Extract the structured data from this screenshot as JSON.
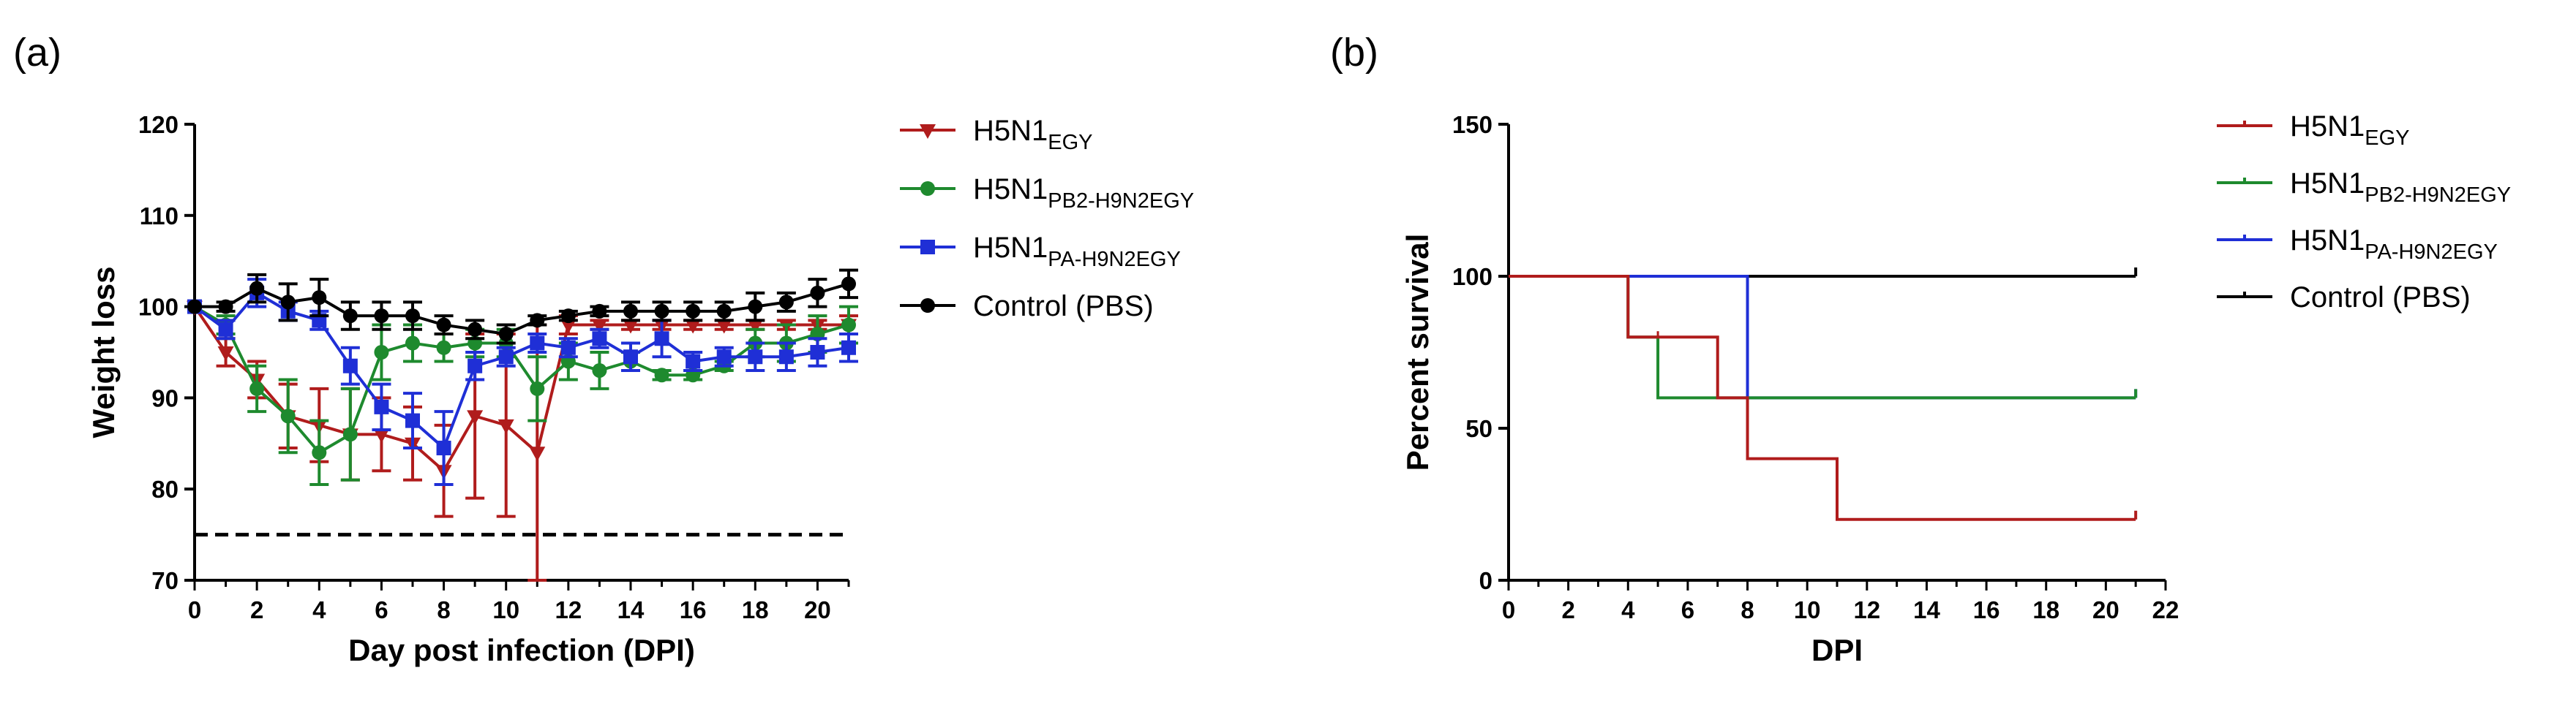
{
  "chart_data": [
    {
      "panel_label": "(a)",
      "type": "line",
      "xlabel": "Day post infection (DPI)",
      "ylabel": "Weight loss",
      "xlim": [
        0,
        21
      ],
      "ylim": [
        70,
        120
      ],
      "xticks": [
        "0",
        "2",
        "4",
        "6",
        "8",
        "10",
        "12",
        "14",
        "16",
        "18",
        "20"
      ],
      "yticks": [
        "70",
        "80",
        "90",
        "100",
        "110",
        "120"
      ],
      "grid": false,
      "legend_position": "right",
      "reference_line": {
        "y": 75,
        "style": "dashed"
      },
      "x": [
        0,
        1,
        2,
        3,
        4,
        5,
        6,
        7,
        8,
        9,
        10,
        11,
        12,
        13,
        14,
        15,
        16,
        17,
        18,
        19,
        20,
        21
      ],
      "series": [
        {
          "name_main": "H5N1",
          "name_sub": "EGY",
          "color": "#b01c1c",
          "marker": "triangle-down",
          "x": [
            0,
            1,
            2,
            3,
            4,
            5,
            6,
            7,
            8,
            9,
            10,
            11,
            12,
            13,
            14,
            15,
            16,
            17,
            18,
            19,
            20,
            21
          ],
          "values": [
            100,
            95,
            92,
            88,
            87,
            86,
            86,
            85,
            82,
            88,
            87,
            84,
            98,
            98,
            98,
            98,
            98,
            98,
            98,
            98,
            98,
            98
          ],
          "errors": [
            0,
            1.5,
            2,
            3.5,
            4,
            5,
            4,
            4,
            5,
            9,
            10,
            14,
            1,
            0.5,
            0.5,
            0.5,
            0.5,
            0.5,
            0.5,
            0.5,
            0.5,
            1
          ]
        },
        {
          "name_main": "H5N1",
          "name_sub": "PB2-H9N2EGY",
          "color": "#1e8a2e",
          "marker": "circle",
          "x": [
            0,
            1,
            2,
            3,
            4,
            5,
            6,
            7,
            8,
            9,
            10,
            11,
            12,
            13,
            14,
            15,
            16,
            17,
            18,
            19,
            20,
            21
          ],
          "values": [
            100,
            98,
            91,
            88,
            84,
            86,
            95,
            96,
            95.5,
            96,
            96,
            91,
            94,
            93,
            94,
            92.5,
            92.5,
            93.5,
            96,
            96,
            97,
            98
          ],
          "errors": [
            0,
            1,
            2.5,
            4,
            3.5,
            5,
            3,
            2,
            1.5,
            1.5,
            1.5,
            3.5,
            2,
            2,
            1,
            0.5,
            0.5,
            0.5,
            1.5,
            2,
            2,
            2
          ]
        },
        {
          "name_main": "H5N1",
          "name_sub": "PA-H9N2EGY",
          "color": "#1f2fd6",
          "marker": "square",
          "x": [
            0,
            1,
            2,
            3,
            4,
            5,
            6,
            7,
            8,
            9,
            10,
            11,
            12,
            13,
            14,
            15,
            16,
            17,
            18,
            19,
            20,
            21
          ],
          "values": [
            100,
            97.5,
            101.5,
            99.5,
            98.5,
            93.5,
            89,
            87.5,
            84.5,
            93.5,
            94.5,
            96,
            95.5,
            96.5,
            94.5,
            96.5,
            94,
            94.5,
            94.5,
            94.5,
            95,
            95.5
          ],
          "errors": [
            0,
            1,
            1.5,
            1,
            1,
            2,
            2.5,
            3,
            4,
            1.5,
            1,
            1,
            1,
            1,
            1.5,
            2,
            1,
            1,
            1.5,
            1.5,
            1.5,
            1.5
          ]
        },
        {
          "name_main": "Control (PBS)",
          "name_sub": "",
          "color": "#000000",
          "marker": "circle",
          "x": [
            0,
            1,
            2,
            3,
            4,
            5,
            6,
            7,
            8,
            9,
            10,
            11,
            12,
            13,
            14,
            15,
            16,
            17,
            18,
            19,
            20,
            21
          ],
          "values": [
            100,
            100,
            102,
            100.5,
            101,
            99,
            99,
            99,
            98,
            97.5,
            97,
            98.5,
            99,
            99.5,
            99.5,
            99.5,
            99.5,
            99.5,
            100,
            100.5,
            101.5,
            102.5
          ],
          "errors": [
            0,
            0.5,
            1.5,
            2,
            2,
            1.5,
            1.5,
            1.5,
            1,
            1,
            1,
            0.5,
            0.5,
            0.5,
            1,
            1,
            1,
            1,
            1.5,
            1,
            1.5,
            1.5
          ]
        }
      ]
    },
    {
      "panel_label": "(b)",
      "type": "line",
      "step": true,
      "xlabel": "DPI",
      "ylabel": "Percent survival",
      "xlim": [
        0,
        22
      ],
      "ylim": [
        0,
        150
      ],
      "xticks": [
        "0",
        "2",
        "4",
        "6",
        "8",
        "10",
        "12",
        "14",
        "16",
        "18",
        "20",
        "22"
      ],
      "yticks": [
        "0",
        "50",
        "100",
        "150"
      ],
      "grid": false,
      "legend_position": "top-right",
      "series": [
        {
          "name_main": "H5N1",
          "name_sub": "EGY",
          "color": "#b01c1c",
          "x": [
            0,
            4,
            5,
            7,
            8,
            11,
            21
          ],
          "values": [
            100,
            80,
            80,
            60,
            40,
            20,
            20
          ]
        },
        {
          "name_main": "H5N1",
          "name_sub": "PB2-H9N2EGY",
          "color": "#1e8a2e",
          "x": [
            0,
            4,
            5,
            7,
            21
          ],
          "values": [
            100,
            80,
            60,
            60,
            60
          ]
        },
        {
          "name_main": "H5N1",
          "name_sub": "PA-H9N2EGY",
          "color": "#1f2fd6",
          "x": [
            0,
            8,
            21
          ],
          "values": [
            100,
            60,
            60
          ]
        },
        {
          "name_main": "Control (PBS)",
          "name_sub": "",
          "color": "#000000",
          "x": [
            0,
            21
          ],
          "values": [
            100,
            100
          ]
        }
      ]
    }
  ]
}
